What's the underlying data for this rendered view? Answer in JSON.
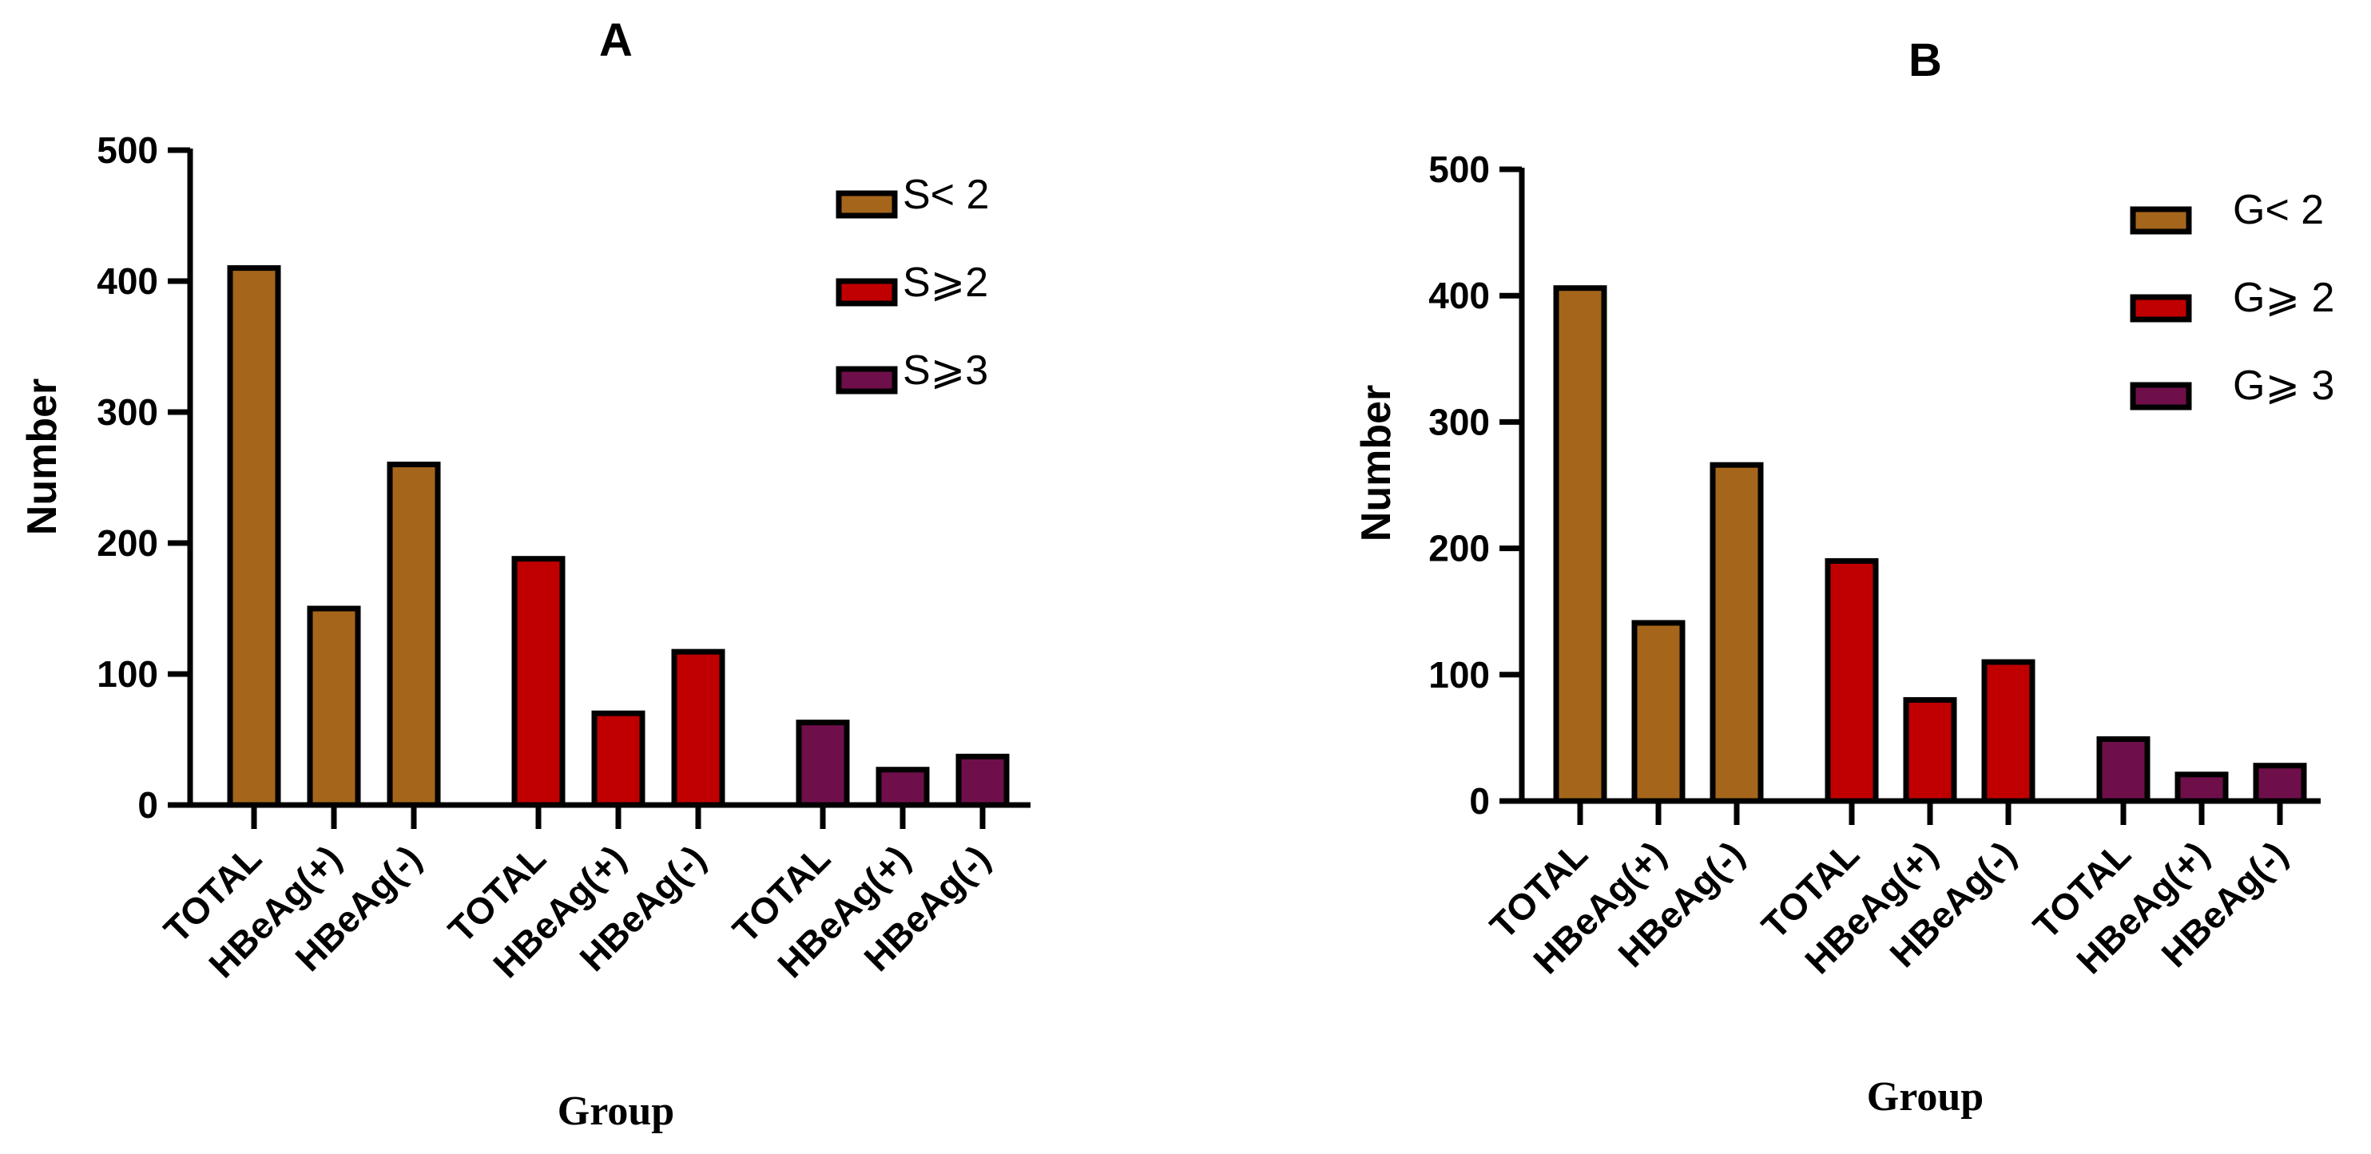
{
  "chart_data": [
    {
      "type": "bar",
      "title": "A",
      "xlabel": "Group",
      "ylabel": "Number",
      "ylim": [
        0,
        500
      ],
      "yticks": [
        "0",
        "100",
        "200",
        "300",
        "400",
        "500"
      ],
      "categories": [
        "TOTAL",
        "HBeAg(+)",
        "HBeAg(-)"
      ],
      "series": [
        {
          "name": "S< 2",
          "color": "#A5661B",
          "values": [
            410,
            150,
            260
          ]
        },
        {
          "name": "S⩾2",
          "color": "#C00000",
          "values": [
            188,
            70,
            117
          ]
        },
        {
          "name": "S⩾3",
          "color": "#6E0F4A",
          "values": [
            63,
            27,
            37
          ]
        }
      ],
      "legend": "top-right",
      "grid": false
    },
    {
      "type": "bar",
      "title": "B",
      "xlabel": "Group",
      "ylabel": "Number",
      "ylim": [
        0,
        500
      ],
      "yticks": [
        "0",
        "100",
        "200",
        "300",
        "400",
        "500"
      ],
      "categories": [
        "TOTAL",
        "HBeAg(+)",
        "HBeAg(-)"
      ],
      "series": [
        {
          "name": "G< 2",
          "color": "#A5661B",
          "values": [
            406,
            141,
            266
          ]
        },
        {
          "name": "G⩾ 2",
          "color": "#C00000",
          "values": [
            190,
            80,
            110
          ]
        },
        {
          "name": "G⩾ 3",
          "color": "#6E0F4A",
          "values": [
            49,
            21,
            28
          ]
        }
      ],
      "legend": "top-right",
      "grid": false
    }
  ]
}
